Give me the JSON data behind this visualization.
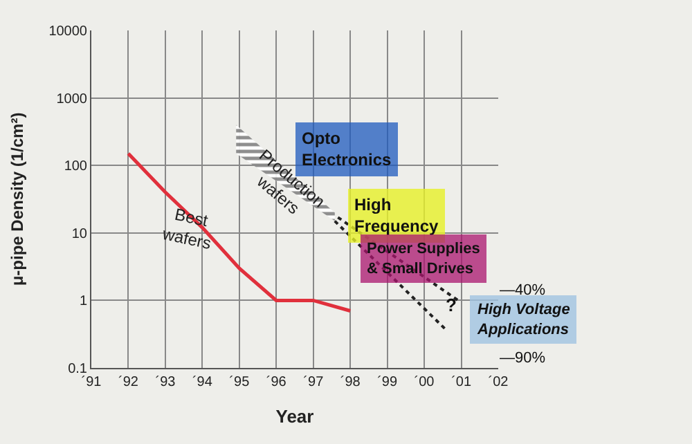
{
  "chart_data": {
    "type": "line",
    "xlabel": "Year",
    "ylabel": "μ-pipe Density (1/cm²)",
    "log": "y",
    "xlim": [
      "1991",
      "2002"
    ],
    "xticks": [
      {
        "value": "1991",
        "label": "´91"
      },
      {
        "value": "1992",
        "label": "´92"
      },
      {
        "value": "1993",
        "label": "´93"
      },
      {
        "value": "1994",
        "label": "´94"
      },
      {
        "value": "1995",
        "label": "´95"
      },
      {
        "value": "1996",
        "label": "´96"
      },
      {
        "value": "1997",
        "label": "´97"
      },
      {
        "value": "1998",
        "label": "´98"
      },
      {
        "value": "1999",
        "label": "´99"
      },
      {
        "value": "2000",
        "label": "´00"
      },
      {
        "value": "2001",
        "label": "´01"
      },
      {
        "value": "2002",
        "label": "´02"
      }
    ],
    "ylim": [
      0.1,
      10000
    ],
    "yticks": [
      0.1,
      1,
      10,
      100,
      1000,
      10000
    ],
    "grid": true,
    "legend": false,
    "marker": "none",
    "series": [
      {
        "name": "Best wafers",
        "color": "#e0303c",
        "x": [
          "1992",
          "1993",
          "1994",
          "1995",
          "1996",
          "1997",
          "1998"
        ],
        "values": [
          150,
          40,
          12,
          3,
          1,
          1,
          0.7
        ],
        "line_style": "solid"
      },
      {
        "name": "Production wafers",
        "color": "#222222",
        "type": "area",
        "x": [
          "1994-12",
          "1997-08"
        ],
        "values": [
          null,
          null
        ],
        "lower": [
          150,
          15
        ],
        "upper": [
          400,
          20
        ]
      },
      {
        "color": "#222222",
        "x": [
          "1997-09",
          "2000-12"
        ],
        "values": [
          17,
          1
        ],
        "line_style": "dotted"
      },
      {
        "color": "#222222",
        "x": [
          "1997-08",
          "2000-08"
        ],
        "values": [
          15,
          0.37
        ],
        "line_style": "dotted"
      }
    ],
    "annotations": [
      "Opto\nElectronics",
      "High\nFrequency",
      "Power Supplies\n& Small Drives",
      "High Voltage\nApplications",
      "?",
      "—40%",
      "—90%"
    ]
  }
}
